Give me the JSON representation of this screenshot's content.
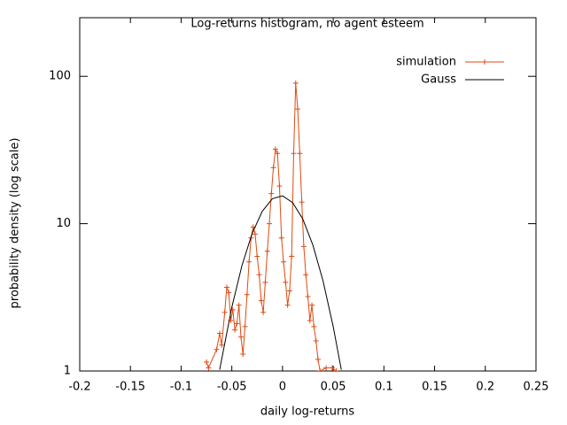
{
  "chart_data": {
    "type": "line",
    "title": "Log-returns histogram, no agent esteem",
    "x_label": "daily log-returns",
    "y_label": "probability density (log scale)",
    "log_scale": "y",
    "legend": "top right",
    "xlim": [
      -0.2,
      0.25
    ],
    "xticks": [
      -0.2,
      -0.15,
      -0.1,
      -0.05,
      0,
      0.05,
      0.1,
      0.15,
      0.2,
      0.25
    ],
    "ylim": [
      1,
      250
    ],
    "yticks": [
      1,
      10,
      100
    ],
    "series": [
      {
        "name": "simulation",
        "color": "#e04a10",
        "markers": true,
        "x": [
          -0.075,
          -0.073,
          -0.065,
          -0.062,
          -0.06,
          -0.057,
          -0.055,
          -0.053,
          -0.051,
          -0.049,
          -0.047,
          -0.045,
          -0.043,
          -0.041,
          -0.039,
          -0.037,
          -0.035,
          -0.033,
          -0.031,
          -0.029,
          -0.027,
          -0.025,
          -0.023,
          -0.021,
          -0.019,
          -0.017,
          -0.015,
          -0.013,
          -0.011,
          -0.009,
          -0.007,
          -0.005,
          -0.003,
          -0.001,
          0.001,
          0.003,
          0.005,
          0.007,
          0.009,
          0.011,
          0.013,
          0.015,
          0.017,
          0.019,
          0.021,
          0.023,
          0.025,
          0.027,
          0.029,
          0.031,
          0.033,
          0.035,
          0.037,
          0.043,
          0.049,
          0.053
        ],
        "values": [
          1.15,
          1.05,
          1.4,
          1.8,
          1.5,
          2.5,
          3.7,
          3.4,
          2.2,
          2.6,
          1.9,
          2.1,
          2.8,
          1.7,
          1.3,
          2.0,
          3.3,
          5.5,
          8.0,
          9.5,
          8.5,
          6.0,
          4.5,
          3.0,
          2.5,
          4.0,
          6.5,
          10,
          16,
          24,
          32,
          30,
          18,
          8,
          5.5,
          4,
          2.8,
          3.5,
          6,
          30,
          90,
          60,
          30,
          14,
          7,
          4.5,
          3.2,
          2.2,
          2.8,
          2.0,
          1.6,
          1.2,
          1.0,
          1.05,
          1.05,
          1.0
        ]
      },
      {
        "name": "Gauss",
        "color": "#000000",
        "markers": false,
        "x": [
          -0.062,
          -0.05,
          -0.04,
          -0.03,
          -0.02,
          -0.01,
          0,
          0.01,
          0.02,
          0.03,
          0.04,
          0.05,
          0.058
        ],
        "values": [
          1.02,
          2.71,
          5.2,
          8.56,
          12.13,
          14.77,
          15.45,
          13.9,
          10.75,
          7.14,
          4.08,
          2.0,
          1.02
        ]
      }
    ]
  }
}
